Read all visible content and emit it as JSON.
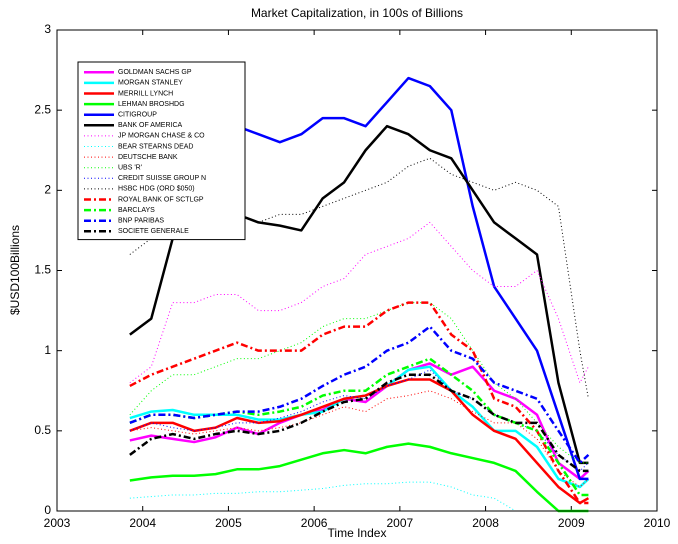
{
  "chart_data": {
    "type": "line",
    "title": "Market Capitalization, in 100s of Billions",
    "xlabel": "Time Index",
    "ylabel": "$USD100Billions",
    "xlim": [
      2003,
      2010
    ],
    "xticks": [
      2003,
      2004,
      2005,
      2006,
      2007,
      2008,
      2009,
      2010
    ],
    "ylim": [
      0,
      3
    ],
    "yticks": [
      0,
      0.5,
      1,
      1.5,
      2,
      2.5,
      3
    ],
    "legend": "upper left",
    "x": [
      2003.85,
      2004.1,
      2004.35,
      2004.6,
      2004.85,
      2005.1,
      2005.35,
      2005.6,
      2005.85,
      2006.1,
      2006.35,
      2006.6,
      2006.85,
      2007.1,
      2007.35,
      2007.6,
      2007.85,
      2008.1,
      2008.35,
      2008.6,
      2008.85,
      2009.1,
      2009.2
    ],
    "series": [
      {
        "name": "GOLDMAN SACHS GP",
        "color": "#ff00ff",
        "linestyle": "solid",
        "values": [
          0.44,
          0.47,
          0.45,
          0.43,
          0.46,
          0.52,
          0.48,
          0.55,
          0.6,
          0.63,
          0.7,
          0.68,
          0.78,
          0.88,
          0.92,
          0.85,
          0.9,
          0.75,
          0.7,
          0.6,
          0.3,
          0.2,
          0.25
        ]
      },
      {
        "name": "MORGAN STANLEY",
        "color": "#00ffff",
        "linestyle": "solid",
        "values": [
          0.58,
          0.62,
          0.63,
          0.6,
          0.6,
          0.6,
          0.57,
          0.57,
          0.6,
          0.62,
          0.7,
          0.72,
          0.78,
          0.88,
          0.9,
          0.75,
          0.65,
          0.5,
          0.5,
          0.4,
          0.2,
          0.15,
          0.2
        ]
      },
      {
        "name": "MERRILL LYNCH",
        "color": "#ff0000",
        "linestyle": "solid",
        "values": [
          0.5,
          0.55,
          0.55,
          0.5,
          0.52,
          0.58,
          0.55,
          0.56,
          0.6,
          0.65,
          0.7,
          0.72,
          0.78,
          0.82,
          0.82,
          0.75,
          0.6,
          0.5,
          0.45,
          0.3,
          0.15,
          0.05,
          0.08
        ]
      },
      {
        "name": "LEHMAN BROSHDG",
        "color": "#00ff00",
        "linestyle": "solid",
        "values": [
          0.19,
          0.21,
          0.22,
          0.22,
          0.23,
          0.26,
          0.26,
          0.28,
          0.32,
          0.36,
          0.38,
          0.36,
          0.4,
          0.42,
          0.4,
          0.36,
          0.33,
          0.3,
          0.25,
          0.12,
          0,
          0,
          0
        ]
      },
      {
        "name": "CITIGROUP",
        "color": "#0000ff",
        "linestyle": "solid",
        "values": [
          2.45,
          2.5,
          2.5,
          2.4,
          2.4,
          2.4,
          2.35,
          2.3,
          2.35,
          2.45,
          2.45,
          2.4,
          2.55,
          2.7,
          2.65,
          2.5,
          1.9,
          1.4,
          1.2,
          1.0,
          0.6,
          0.2,
          0.2
        ]
      },
      {
        "name": "BANK OF AMERICA",
        "color": "#000000",
        "linestyle": "solid",
        "values": [
          1.1,
          1.2,
          1.7,
          1.8,
          1.85,
          1.85,
          1.8,
          1.78,
          1.75,
          1.95,
          2.05,
          2.25,
          2.4,
          2.35,
          2.25,
          2.2,
          2.0,
          1.8,
          1.7,
          1.6,
          0.8,
          0.3,
          0.3
        ]
      },
      {
        "name": "JP MORGAN CHASE & CO",
        "color": "#ff00ff",
        "linestyle": "dotted",
        "values": [
          0.8,
          0.9,
          1.3,
          1.3,
          1.35,
          1.35,
          1.25,
          1.25,
          1.3,
          1.4,
          1.45,
          1.6,
          1.65,
          1.7,
          1.8,
          1.65,
          1.5,
          1.4,
          1.4,
          1.5,
          1.2,
          0.8,
          0.9
        ]
      },
      {
        "name": "BEAR STEARNS DEAD",
        "color": "#00ffff",
        "linestyle": "dotted",
        "values": [
          0.08,
          0.09,
          0.1,
          0.1,
          0.11,
          0.11,
          0.12,
          0.12,
          0.13,
          0.14,
          0.16,
          0.17,
          0.17,
          0.18,
          0.18,
          0.15,
          0.1,
          0.08,
          0,
          null,
          null,
          null,
          null
        ]
      },
      {
        "name": "DEUTSCHE BANK",
        "color": "#ff0000",
        "linestyle": "dotted",
        "values": [
          0.5,
          0.52,
          0.5,
          0.48,
          0.5,
          0.52,
          0.5,
          0.52,
          0.55,
          0.6,
          0.65,
          0.62,
          0.7,
          0.72,
          0.75,
          0.7,
          0.62,
          0.55,
          0.55,
          0.45,
          0.25,
          0.15,
          0.2
        ]
      },
      {
        "name": "UBS 'R'",
        "color": "#00ff00",
        "linestyle": "dotted",
        "values": [
          0.6,
          0.75,
          0.85,
          0.85,
          0.9,
          0.95,
          0.95,
          1.0,
          1.05,
          1.15,
          1.2,
          1.2,
          1.25,
          1.3,
          1.3,
          1.2,
          1.0,
          0.8,
          0.7,
          0.55,
          0.4,
          0.3,
          0.3
        ]
      },
      {
        "name": "CREDIT SUISSE GROUP N",
        "color": "#0000ff",
        "linestyle": "dotted",
        "values": [
          0.5,
          0.55,
          0.52,
          0.5,
          0.52,
          0.55,
          0.55,
          0.58,
          0.62,
          0.68,
          0.72,
          0.7,
          0.78,
          0.82,
          0.88,
          0.75,
          0.7,
          0.6,
          0.55,
          0.5,
          0.35,
          0.25,
          0.3
        ]
      },
      {
        "name": "HSBC HDG (ORD $050)",
        "color": "#000000",
        "linestyle": "dotted",
        "values": [
          1.6,
          1.7,
          1.75,
          1.8,
          1.8,
          1.85,
          1.8,
          1.85,
          1.85,
          1.9,
          1.95,
          2.0,
          2.05,
          2.15,
          2.2,
          2.1,
          2.05,
          2.0,
          2.05,
          2.0,
          1.9,
          1.0,
          0.7
        ]
      },
      {
        "name": "ROYAL BANK OF SCTLGP",
        "color": "#ff0000",
        "linestyle": "dashdot",
        "values": [
          0.78,
          0.85,
          0.9,
          0.95,
          1.0,
          1.05,
          1.0,
          1.0,
          1.0,
          1.1,
          1.15,
          1.15,
          1.25,
          1.3,
          1.3,
          1.1,
          1.0,
          0.7,
          0.65,
          0.5,
          0.25,
          0.05,
          0.05
        ]
      },
      {
        "name": "BARCLAYS",
        "color": "#00ff00",
        "linestyle": "dashdot",
        "values": [
          0.55,
          0.6,
          0.6,
          0.58,
          0.6,
          0.62,
          0.6,
          0.62,
          0.65,
          0.72,
          0.75,
          0.75,
          0.85,
          0.9,
          0.95,
          0.85,
          0.75,
          0.6,
          0.55,
          0.5,
          0.3,
          0.1,
          0.1
        ]
      },
      {
        "name": "BNP PARIBAS",
        "color": "#0000ff",
        "linestyle": "dashdot",
        "values": [
          0.55,
          0.6,
          0.6,
          0.58,
          0.6,
          0.62,
          0.62,
          0.65,
          0.7,
          0.78,
          0.85,
          0.9,
          1.0,
          1.05,
          1.15,
          1.0,
          0.95,
          0.8,
          0.75,
          0.7,
          0.5,
          0.3,
          0.35
        ]
      },
      {
        "name": "SOCIETE GENERALE",
        "color": "#000000",
        "linestyle": "dashdot",
        "values": [
          0.35,
          0.45,
          0.48,
          0.45,
          0.48,
          0.5,
          0.48,
          0.5,
          0.55,
          0.62,
          0.68,
          0.7,
          0.8,
          0.85,
          0.85,
          0.75,
          0.7,
          0.6,
          0.55,
          0.55,
          0.35,
          0.25,
          0.25
        ]
      }
    ]
  }
}
